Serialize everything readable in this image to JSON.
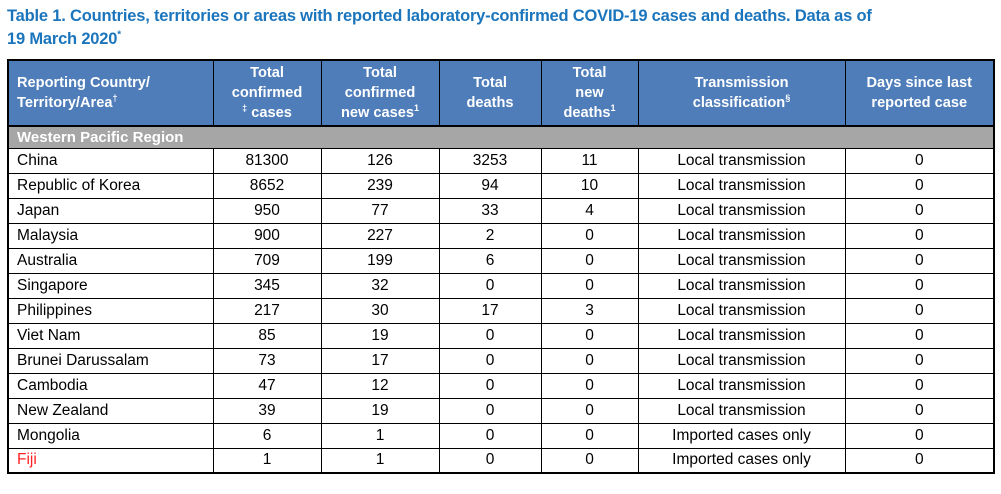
{
  "colors": {
    "title_blue": "#1b75bc",
    "header_blue": "#4e7dba",
    "region_gray": "#a6a6a6",
    "highlight_red": "#ff2222",
    "border_black": "#000000"
  },
  "title": {
    "line1": "Table 1. Countries, territories or areas with reported laboratory-confirmed COVID-19 cases and deaths. Data as of",
    "line2": "19 March 2020",
    "line2_sup": "*"
  },
  "table": {
    "headers": [
      {
        "align": "left",
        "lines": [
          [
            {
              "t": "Reporting Country/"
            }
          ],
          [
            {
              "t": "Territory/Area"
            },
            {
              "sup": "†"
            }
          ]
        ]
      },
      {
        "align": "center",
        "lines": [
          [
            {
              "t": "Total"
            }
          ],
          [
            {
              "t": "confirmed"
            }
          ],
          [
            {
              "sup": "‡"
            },
            {
              "t": " cases"
            }
          ]
        ]
      },
      {
        "align": "center",
        "lines": [
          [
            {
              "t": "Total"
            }
          ],
          [
            {
              "t": "confirmed"
            }
          ],
          [
            {
              "t": "new cases"
            },
            {
              "sup": "1"
            }
          ]
        ]
      },
      {
        "align": "center",
        "lines": [
          [
            {
              "t": "Total"
            }
          ],
          [
            {
              "t": "deaths"
            }
          ]
        ]
      },
      {
        "align": "center",
        "lines": [
          [
            {
              "t": "Total"
            }
          ],
          [
            {
              "t": "new"
            }
          ],
          [
            {
              "t": "deaths"
            },
            {
              "sup": "1"
            }
          ]
        ]
      },
      {
        "align": "center",
        "lines": [
          [
            {
              "t": "Transmission"
            }
          ],
          [
            {
              "t": "classification"
            },
            {
              "sup": "§"
            }
          ]
        ]
      },
      {
        "align": "center",
        "lines": [
          [
            {
              "t": "Days since last"
            }
          ],
          [
            {
              "t": "reported case"
            }
          ]
        ]
      }
    ],
    "region_row": {
      "label": "Western Pacific Region"
    },
    "rows": [
      {
        "country": "China",
        "confirmed": "81300",
        "new_cases": "126",
        "deaths": "3253",
        "new_deaths": "11",
        "classification": "Local transmission",
        "days_since": "0",
        "red": false
      },
      {
        "country": "Republic of Korea",
        "confirmed": "8652",
        "new_cases": "239",
        "deaths": "94",
        "new_deaths": "10",
        "classification": "Local transmission",
        "days_since": "0",
        "red": false
      },
      {
        "country": "Japan",
        "confirmed": "950",
        "new_cases": "77",
        "deaths": "33",
        "new_deaths": "4",
        "classification": "Local transmission",
        "days_since": "0",
        "red": false
      },
      {
        "country": "Malaysia",
        "confirmed": "900",
        "new_cases": "227",
        "deaths": "2",
        "new_deaths": "0",
        "classification": "Local transmission",
        "days_since": "0",
        "red": false
      },
      {
        "country": "Australia",
        "confirmed": "709",
        "new_cases": "199",
        "deaths": "6",
        "new_deaths": "0",
        "classification": "Local transmission",
        "days_since": "0",
        "red": false
      },
      {
        "country": "Singapore",
        "confirmed": "345",
        "new_cases": "32",
        "deaths": "0",
        "new_deaths": "0",
        "classification": "Local transmission",
        "days_since": "0",
        "red": false
      },
      {
        "country": "Philippines",
        "confirmed": "217",
        "new_cases": "30",
        "deaths": "17",
        "new_deaths": "3",
        "classification": "Local transmission",
        "days_since": "0",
        "red": false
      },
      {
        "country": "Viet Nam",
        "confirmed": "85",
        "new_cases": "19",
        "deaths": "0",
        "new_deaths": "0",
        "classification": "Local transmission",
        "days_since": "0",
        "red": false
      },
      {
        "country": "Brunei Darussalam",
        "confirmed": "73",
        "new_cases": "17",
        "deaths": "0",
        "new_deaths": "0",
        "classification": "Local transmission",
        "days_since": "0",
        "red": false
      },
      {
        "country": "Cambodia",
        "confirmed": "47",
        "new_cases": "12",
        "deaths": "0",
        "new_deaths": "0",
        "classification": "Local transmission",
        "days_since": "0",
        "red": false
      },
      {
        "country": "New Zealand",
        "confirmed": "39",
        "new_cases": "19",
        "deaths": "0",
        "new_deaths": "0",
        "classification": "Local transmission",
        "days_since": "0",
        "red": false
      },
      {
        "country": "Mongolia",
        "confirmed": "6",
        "new_cases": "1",
        "deaths": "0",
        "new_deaths": "0",
        "classification": "Imported cases only",
        "days_since": "0",
        "red": false
      },
      {
        "country": "Fiji",
        "confirmed": "1",
        "new_cases": "1",
        "deaths": "0",
        "new_deaths": "0",
        "classification": "Imported cases only",
        "days_since": "0",
        "red": true
      }
    ]
  }
}
